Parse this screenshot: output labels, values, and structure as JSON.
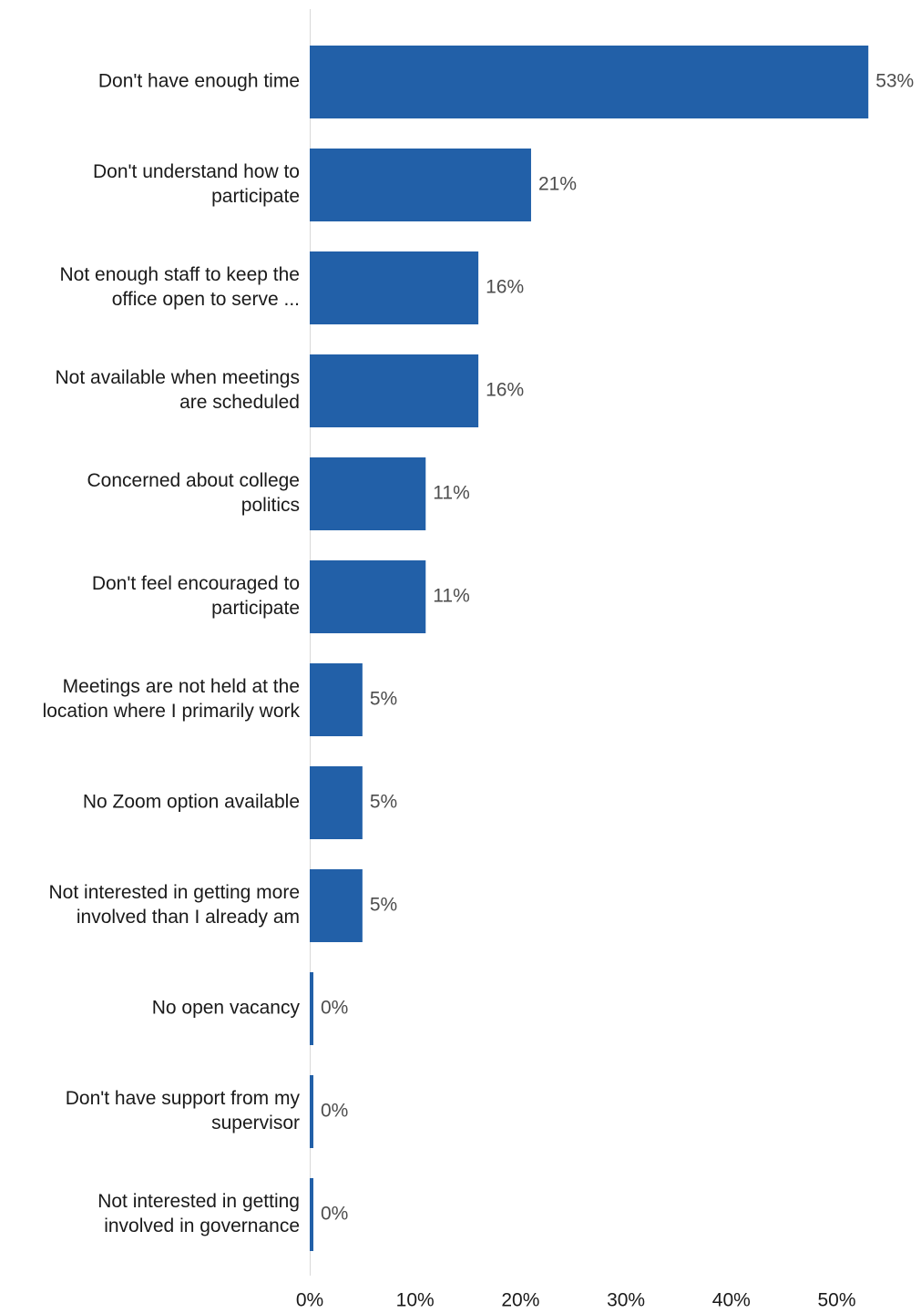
{
  "chart_data": {
    "type": "bar",
    "orientation": "horizontal",
    "title": "",
    "xlabel": "",
    "ylabel": "",
    "categories": [
      "Don't have enough time",
      "Don't understand how to participate",
      "Not enough staff to keep the office open to serve ...",
      "Not available when meetings are scheduled",
      "Concerned about college politics",
      "Don't feel encouraged to participate",
      "Meetings are not held at the location where I primarily work",
      "No Zoom option available",
      "Not interested in getting more involved than I already am",
      "No open vacancy",
      "Don't have support from my supervisor",
      "Not interested in getting involved in governance"
    ],
    "category_label_lines": [
      [
        "Don't have enough time"
      ],
      [
        "Don't understand how to",
        "participate"
      ],
      [
        "Not enough staff to keep the",
        "office open to serve ..."
      ],
      [
        "Not available when meetings",
        "are scheduled"
      ],
      [
        "Concerned about college",
        "politics"
      ],
      [
        "Don't feel encouraged to",
        "participate"
      ],
      [
        "Meetings are not held at the",
        "location where I primarily work"
      ],
      [
        "No Zoom option available"
      ],
      [
        "Not interested in getting more",
        "involved than I already am"
      ],
      [
        "No open vacancy"
      ],
      [
        "Don't have support from my",
        "supervisor"
      ],
      [
        "Not interested in getting",
        "involved in governance"
      ]
    ],
    "values": [
      53,
      21,
      16,
      16,
      11,
      11,
      5,
      5,
      5,
      0,
      0,
      0
    ],
    "value_labels": [
      "53%",
      "21%",
      "16%",
      "16%",
      "11%",
      "11%",
      "5%",
      "5%",
      "5%",
      "0%",
      "0%",
      "0%"
    ],
    "xlim": [
      0,
      55
    ],
    "x_ticks": [
      0,
      10,
      20,
      30,
      40,
      50
    ],
    "x_tick_labels": [
      "0%",
      "10%",
      "20%",
      "30%",
      "40%",
      "50%"
    ],
    "grid": false,
    "legend": "none",
    "bar_color": "#2260a8",
    "axis_color": "#d9d9d9"
  }
}
